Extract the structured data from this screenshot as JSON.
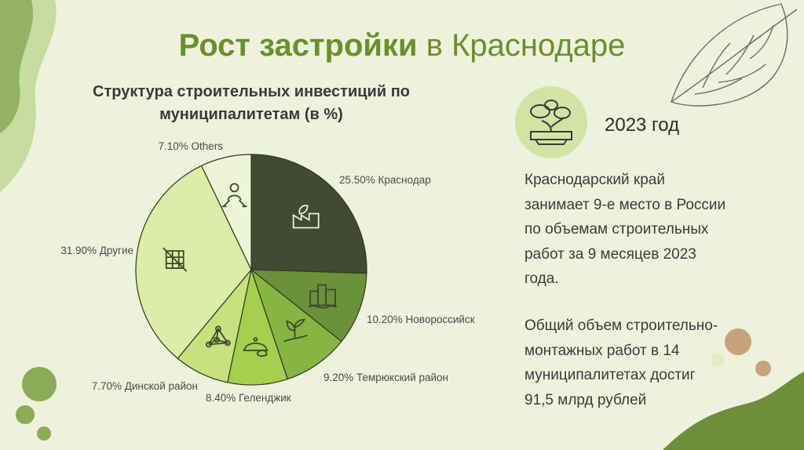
{
  "title": {
    "bold": "Рост застройки",
    "rest": " в Краснодаре"
  },
  "subtitle": {
    "line1": "Структура строительных инвестиций по",
    "line2": "муниципалитетам (в %)"
  },
  "year": "2023 год",
  "text": {
    "para1": [
      "Краснодарский край",
      "занимает 9-е место в России",
      "по объемам строительных",
      "работ за 9 месяцев 2023",
      "года."
    ],
    "para2": [
      "Общий объем строительно-",
      "монтажных работ в 14",
      "муниципалитетах достиг",
      "91,5 млрд рублей"
    ]
  },
  "colors": {
    "background": "#eef2dc",
    "title": "#6a8f2c",
    "circle": "#d3e3a6",
    "dark_green": "#6d8f3a",
    "brown": "#c7a27c"
  },
  "icons": [
    "factory-icon",
    "city-icon",
    "plant-icon",
    "cloche-icon",
    "network-icon",
    "grid-icon",
    "people-icon",
    "bonsai-icon",
    "leaf-outline-icon"
  ],
  "chart_data": {
    "type": "pie",
    "title": "Структура строительных инвестиций по муниципалитетам (в %)",
    "unit": "%",
    "slices": [
      {
        "label": "25.50% Краснодар",
        "name": "Краснодар",
        "value": 25.5,
        "color": "#424a33",
        "icon": "factory-icon"
      },
      {
        "label": "10.20% Новороссийск",
        "name": "Новороссийск",
        "value": 10.2,
        "color": "#6b913b",
        "icon": "city-icon"
      },
      {
        "label": "9.20% Темрюкский район",
        "name": "Темрюкский район",
        "value": 9.2,
        "color": "#87b544",
        "icon": "plant-icon"
      },
      {
        "label": "8.40% Геленджик",
        "name": "Геленджик",
        "value": 8.4,
        "color": "#a4cf4f",
        "icon": "cloche-icon"
      },
      {
        "label": "7.70% Динской район",
        "name": "Динской район",
        "value": 7.7,
        "color": "#c5e27f",
        "icon": "network-icon"
      },
      {
        "label": "31.90% Другие",
        "name": "Другие",
        "value": 31.9,
        "color": "#dbeda6",
        "icon": "grid-icon"
      },
      {
        "label": "7.10% Others",
        "name": "Others",
        "value": 7.1,
        "color": "#eef5d6",
        "icon": "people-icon"
      }
    ]
  }
}
